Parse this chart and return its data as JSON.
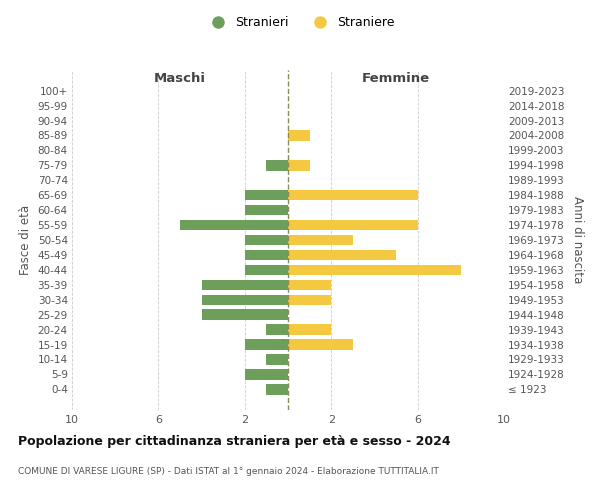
{
  "age_groups": [
    "100+",
    "95-99",
    "90-94",
    "85-89",
    "80-84",
    "75-79",
    "70-74",
    "65-69",
    "60-64",
    "55-59",
    "50-54",
    "45-49",
    "40-44",
    "35-39",
    "30-34",
    "25-29",
    "20-24",
    "15-19",
    "10-14",
    "5-9",
    "0-4"
  ],
  "birth_years": [
    "≤ 1923",
    "1924-1928",
    "1929-1933",
    "1934-1938",
    "1939-1943",
    "1944-1948",
    "1949-1953",
    "1954-1958",
    "1959-1963",
    "1964-1968",
    "1969-1973",
    "1974-1978",
    "1979-1983",
    "1984-1988",
    "1989-1993",
    "1994-1998",
    "1999-2003",
    "2004-2008",
    "2009-2013",
    "2014-2018",
    "2019-2023"
  ],
  "stranieri": [
    0,
    0,
    0,
    0,
    0,
    1,
    0,
    2,
    2,
    5,
    2,
    2,
    2,
    4,
    4,
    4,
    1,
    2,
    1,
    2,
    1
  ],
  "straniere": [
    0,
    0,
    0,
    1,
    0,
    1,
    0,
    6,
    0,
    6,
    3,
    5,
    8,
    2,
    2,
    0,
    2,
    3,
    0,
    0,
    0
  ],
  "male_color": "#6d9f5b",
  "female_color": "#f5c842",
  "center_line_color": "#8b8b5a",
  "title": "Popolazione per cittadinanza straniera per età e sesso - 2024",
  "subtitle": "COMUNE DI VARESE LIGURE (SP) - Dati ISTAT al 1° gennaio 2024 - Elaborazione TUTTITALIA.IT",
  "xlabel_left": "Maschi",
  "xlabel_right": "Femmine",
  "ylabel_left": "Fasce di età",
  "ylabel_right": "Anni di nascita",
  "legend_stranieri": "Stranieri",
  "legend_straniere": "Straniere",
  "xlim": 10,
  "background_color": "#ffffff",
  "grid_color": "#cccccc"
}
